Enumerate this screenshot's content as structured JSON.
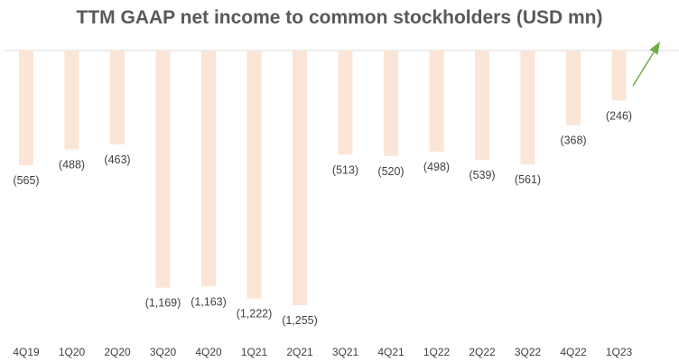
{
  "chart_data": {
    "type": "bar",
    "title": "TTM GAAP net income to common stockholders (USD mn)",
    "categories": [
      "4Q19",
      "1Q20",
      "2Q20",
      "3Q20",
      "4Q20",
      "1Q21",
      "2Q21",
      "3Q21",
      "4Q21",
      "1Q22",
      "2Q22",
      "3Q22",
      "4Q22",
      "1Q23"
    ],
    "values": [
      -565,
      -488,
      -463,
      -1169,
      -1163,
      -1222,
      -1255,
      -513,
      -520,
      -498,
      -539,
      -561,
      -368,
      -246
    ],
    "data_labels": [
      "(565)",
      "(488)",
      "(463)",
      "(1,169)",
      "(1,163)",
      "(1,222)",
      "(1,255)",
      "(513)",
      "(520)",
      "(498)",
      "(539)",
      "(561)",
      "(368)",
      "(246)"
    ],
    "ylim": [
      -1255,
      0
    ],
    "grid": false,
    "legend": "none",
    "colors": {
      "bar": "#fbe5d6",
      "baseline": "#d9d9d9",
      "arrow": "#70ad47",
      "text": "#404040",
      "title": "#595959"
    },
    "annotation": "upward-trend-arrow"
  }
}
